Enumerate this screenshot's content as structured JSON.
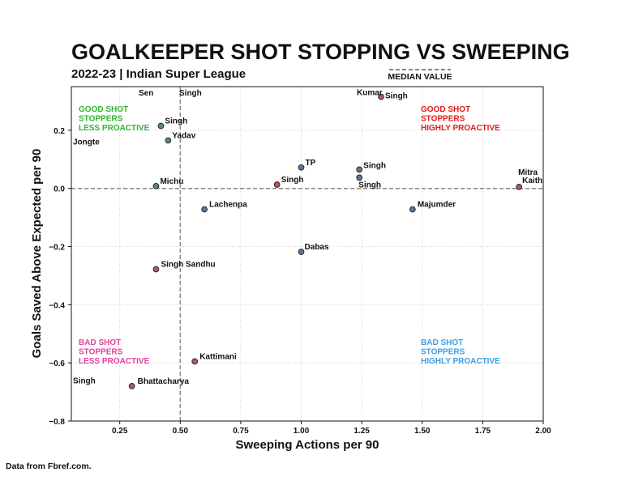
{
  "chart_data": {
    "type": "scatter",
    "title": "GOALKEEPER SHOT STOPPING VS SWEEPING",
    "subtitle": "2022-23 | Indian Super League",
    "xlabel": "Sweeping Actions per 90",
    "ylabel": "Goals Saved Above Expected per 90",
    "xlim": [
      0.05,
      2.0
    ],
    "ylim": [
      -0.8,
      0.35
    ],
    "xticks": [
      0.25,
      0.5,
      0.75,
      1.0,
      1.25,
      1.5,
      1.75,
      2.0
    ],
    "xtick_labels": [
      "0.25",
      "0.50",
      "0.75",
      "1.00",
      "1.25",
      "1.50",
      "1.75",
      "2.00"
    ],
    "yticks": [
      0.2,
      0.0,
      -0.2,
      -0.4,
      -0.6,
      -0.8
    ],
    "ytick_labels": [
      "0.2",
      "0.0",
      "−0.2",
      "−0.4",
      "−0.6",
      "−0.8"
    ],
    "grid": true,
    "median": {
      "label": "MEDIAN VALUE",
      "x": 0.5,
      "y": 0.0
    },
    "quadrants": [
      {
        "lines": [
          "GOOD SHOT",
          "STOPPERS",
          "LESS PROACTIVE"
        ],
        "color": "#2eb82e",
        "position": "top-left"
      },
      {
        "lines": [
          "GOOD SHOT",
          "STOPPERS",
          "HIGHLY PROACTIVE"
        ],
        "color": "#e31a1c",
        "position": "top-right"
      },
      {
        "lines": [
          "BAD SHOT",
          "STOPPERS",
          "LESS PROACTIVE"
        ],
        "color": "#e83e9c",
        "position": "bottom-left"
      },
      {
        "lines": [
          "BAD SHOT",
          "STOPPERS",
          "HIGHLY PROACTIVE"
        ],
        "color": "#3a9ee4",
        "position": "bottom-right"
      }
    ],
    "points": [
      {
        "name": "Kumar Singh",
        "x": 1.33,
        "y": 0.315,
        "color": "#b05a5a",
        "labels": [
          "Kumar",
          "Singh"
        ]
      },
      {
        "name": "Singh",
        "x": 0.42,
        "y": 0.215,
        "color": "#5e8a5e",
        "labels": [
          "Singh"
        ]
      },
      {
        "name": "Yadav",
        "x": 0.45,
        "y": 0.165,
        "color": "#5e8a5e",
        "labels": [
          "Yadav"
        ]
      },
      {
        "name": "TP",
        "x": 1.0,
        "y": 0.072,
        "color": "#5a7690",
        "labels": [
          "TP"
        ]
      },
      {
        "name": "Singh",
        "x": 1.24,
        "y": 0.065,
        "color": "#5a7690",
        "labels": [
          "Singh"
        ]
      },
      {
        "name": "Singh",
        "x": 1.24,
        "y": 0.037,
        "color": "#5a7690",
        "labels": [
          "Singh"
        ]
      },
      {
        "name": "Singh",
        "x": 0.9,
        "y": 0.013,
        "color": "#c0504d",
        "labels": [
          "Singh"
        ]
      },
      {
        "name": "Michu",
        "x": 0.4,
        "y": 0.008,
        "color": "#5e8a5e",
        "labels": [
          "Michu"
        ]
      },
      {
        "name": "Mitra Kaith",
        "x": 1.9,
        "y": 0.005,
        "color": "#b05a5a",
        "labels": [
          "Mitra",
          "Kaith"
        ]
      },
      {
        "name": "Lachenpa",
        "x": 0.6,
        "y": -0.072,
        "color": "#5a7690",
        "labels": [
          "Lachenpa"
        ]
      },
      {
        "name": "Majumder",
        "x": 1.46,
        "y": -0.072,
        "color": "#5a7690",
        "labels": [
          "Majumder"
        ]
      },
      {
        "name": "Dabas",
        "x": 1.0,
        "y": -0.218,
        "color": "#5a7690",
        "labels": [
          "Dabas"
        ]
      },
      {
        "name": "Singh Sandhu",
        "x": 0.4,
        "y": -0.278,
        "color": "#b05a5a",
        "labels": [
          "Singh Sandhu"
        ]
      },
      {
        "name": "Kattimani",
        "x": 0.56,
        "y": -0.595,
        "color": "#b05a5a",
        "labels": [
          "Kattimani"
        ]
      },
      {
        "name": "Bhattacharya",
        "x": 0.3,
        "y": -0.68,
        "color": "#b05a5a",
        "labels": [
          "Bhattacharya"
        ]
      }
    ],
    "offscale_labels": [
      {
        "text": "Sen",
        "x": 0.15,
        "y": 0.33
      },
      {
        "text": "Singh",
        "x": 0.5,
        "y": 0.33
      },
      {
        "text": "Jongte",
        "x": 0.05,
        "y": 0.162
      },
      {
        "text": "Singh",
        "x": 0.05,
        "y": -0.66
      }
    ]
  },
  "footer": {
    "source": "Data from Fbref.com."
  },
  "colors": {
    "grid": "#c8c8c8",
    "median": "#888888",
    "point_edge": "#222222"
  }
}
